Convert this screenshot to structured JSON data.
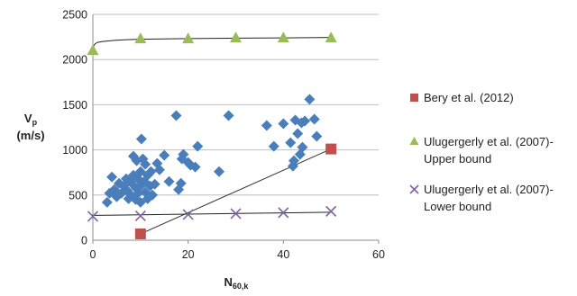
{
  "chart_data": {
    "type": "scatter",
    "xlabel": {
      "main": "N",
      "sub": "60,k"
    },
    "ylabel": {
      "main": "V",
      "sub": "p",
      "unit": "(m/s)"
    },
    "xlim": [
      0,
      60
    ],
    "ylim": [
      0,
      2500
    ],
    "xticks": [
      "0",
      "20",
      "40",
      "60"
    ],
    "yticks": [
      "0",
      "500",
      "1000",
      "1500",
      "2000",
      "2500"
    ],
    "grid": "horizontal",
    "legend_position": "right",
    "series": [
      {
        "name": "",
        "marker": "diamond",
        "color": "#4a7ebb",
        "points": [
          [
            3,
            420
          ],
          [
            3.5,
            520
          ],
          [
            4,
            700
          ],
          [
            4.5,
            560
          ],
          [
            5,
            480
          ],
          [
            5.5,
            630
          ],
          [
            6,
            520
          ],
          [
            6.5,
            600
          ],
          [
            7,
            680
          ],
          [
            7.2,
            550
          ],
          [
            7.5,
            460
          ],
          [
            8,
            640
          ],
          [
            8,
            500
          ],
          [
            8.5,
            720
          ],
          [
            8.5,
            930
          ],
          [
            9,
            580
          ],
          [
            9,
            450
          ],
          [
            9.2,
            880
          ],
          [
            9.5,
            520
          ],
          [
            9.5,
            680
          ],
          [
            10,
            760
          ],
          [
            10,
            600
          ],
          [
            10,
            420
          ],
          [
            10.2,
            1120
          ],
          [
            10.5,
            900
          ],
          [
            10.8,
            650
          ],
          [
            11,
            530
          ],
          [
            11,
            840
          ],
          [
            11.5,
            460
          ],
          [
            11.5,
            720
          ],
          [
            12,
            600
          ],
          [
            12.2,
            760
          ],
          [
            12.5,
            500
          ],
          [
            13,
            620
          ],
          [
            13.5,
            850
          ],
          [
            14,
            780
          ],
          [
            15,
            940
          ],
          [
            16,
            650
          ],
          [
            17.5,
            1380
          ],
          [
            18,
            560
          ],
          [
            18.5,
            630
          ],
          [
            18.7,
            900
          ],
          [
            19,
            950
          ],
          [
            20,
            860
          ],
          [
            20.5,
            830
          ],
          [
            21.5,
            810
          ],
          [
            22,
            1040
          ],
          [
            26.5,
            760
          ],
          [
            28.5,
            1380
          ],
          [
            36.5,
            1270
          ],
          [
            38,
            1040
          ],
          [
            40,
            1290
          ],
          [
            41.5,
            1080
          ],
          [
            42,
            820
          ],
          [
            42.2,
            880
          ],
          [
            42.5,
            1330
          ],
          [
            43,
            1180
          ],
          [
            43.5,
            950
          ],
          [
            43.8,
            1300
          ],
          [
            44,
            1030
          ],
          [
            44.5,
            1320
          ],
          [
            45.5,
            1560
          ],
          [
            46.5,
            1340
          ],
          [
            47,
            1150
          ]
        ]
      },
      {
        "name": "Bery et al. (2012)",
        "marker": "square",
        "color": "#c0504d",
        "points": [
          [
            10,
            70
          ],
          [
            50,
            1010
          ]
        ]
      },
      {
        "name": "Ulugergerly et al. (2007)- Upper bound",
        "legend_lines": [
          "Ulugergerly et al. (2007)-",
          "Upper bound"
        ],
        "marker": "triangle",
        "color": "#9bbb59",
        "points": [
          [
            0,
            2100
          ],
          [
            10,
            2230
          ],
          [
            20,
            2230
          ],
          [
            30,
            2240
          ],
          [
            40,
            2240
          ],
          [
            50,
            2240
          ]
        ]
      },
      {
        "name": "Ulugergerly et al. (2007)- Lower bound",
        "legend_lines": [
          "Ulugergerly et al. (2007)-",
          "Lower bound"
        ],
        "marker": "x",
        "color": "#8064a2",
        "points": [
          [
            0,
            265
          ],
          [
            10,
            270
          ],
          [
            20,
            285
          ],
          [
            30,
            295
          ],
          [
            40,
            305
          ],
          [
            50,
            320
          ]
        ]
      }
    ],
    "trendlines": [
      {
        "color": "#333333",
        "points": [
          [
            10,
            70
          ],
          [
            50,
            1010
          ]
        ]
      },
      {
        "color": "#222222",
        "points": [
          [
            0,
            2140
          ],
          [
            0.5,
            2175
          ],
          [
            1,
            2190
          ],
          [
            2,
            2200
          ],
          [
            4,
            2210
          ],
          [
            7,
            2220
          ],
          [
            10,
            2225
          ],
          [
            20,
            2232
          ],
          [
            30,
            2237
          ],
          [
            40,
            2240
          ],
          [
            50,
            2245
          ]
        ]
      },
      {
        "color": "#222222",
        "points": [
          [
            0,
            275
          ],
          [
            10,
            282
          ],
          [
            20,
            289
          ],
          [
            30,
            296
          ],
          [
            40,
            303
          ],
          [
            50,
            310
          ]
        ]
      }
    ]
  }
}
